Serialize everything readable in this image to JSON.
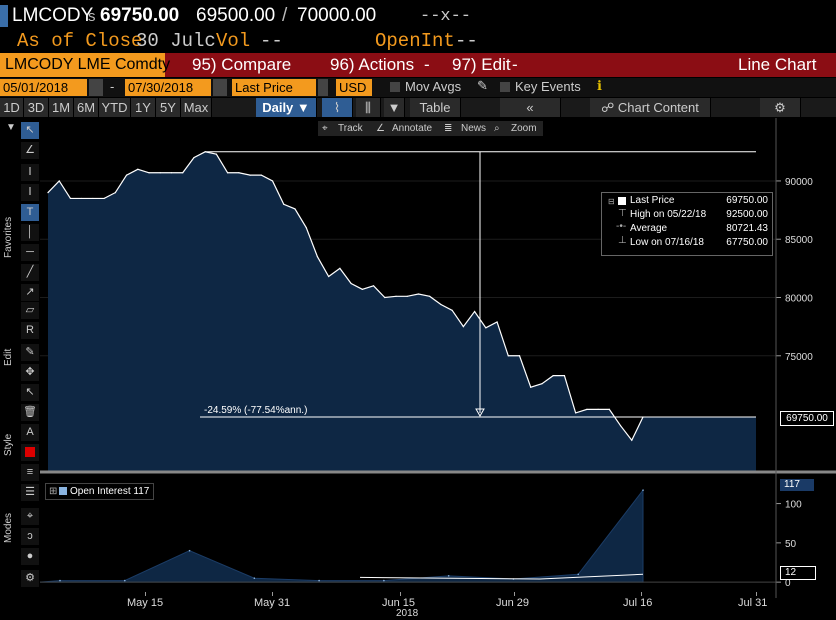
{
  "header": {
    "ticker": "LMCODY",
    "last_prefix": "s",
    "last": "69750.00",
    "bid": "69500.00",
    "separator": "/",
    "ask": "70000.00",
    "change_marker": "--x--",
    "as_of": "As of Close",
    "date_short": "30 Julc",
    "vol_label": "Vol",
    "vol_value": "--",
    "openint_label": "OpenInt",
    "openint_value": "--"
  },
  "menu": {
    "security": "LMCODY LME Comdty",
    "compare": "95) Compare",
    "actions": "96) Actions",
    "edit": "97) Edit",
    "chart_type": "Line Chart",
    "arrow": "-"
  },
  "controls": {
    "start_date": "05/01/2018",
    "dash": "-",
    "end_date": "07/30/2018",
    "field": "Last Price",
    "currency": "USD",
    "mov_avgs": "Mov Avgs",
    "key_events": "Key Events"
  },
  "tabs": {
    "periods": [
      "1D",
      "3D",
      "1M",
      "6M",
      "YTD",
      "1Y",
      "5Y",
      "Max"
    ],
    "frequency": "Daily",
    "table": "Table",
    "collapse": "«",
    "chart_content": "Chart Content"
  },
  "annotate_bar": {
    "track": "Track",
    "annotate": "Annotate",
    "news": "News",
    "zoom": "Zoom"
  },
  "left_labels": {
    "favorites": "Favorites",
    "edit": "Edit",
    "style": "Style",
    "modes": "Modes"
  },
  "legend": {
    "last_price_label": "Last Price",
    "last_price_value": "69750.00",
    "high_label": "High on 05/22/18",
    "high_value": "92500.00",
    "average_label": "Average",
    "average_value": "80721.43",
    "low_label": "Low on 07/16/18",
    "low_value": "67750.00"
  },
  "annotation_text": "-24.59% (-77.54%ann.)",
  "price_tag": "69750.00",
  "oi": {
    "legend": "Open Interest 117",
    "tag_high": "117",
    "tag_low": "12"
  },
  "colors": {
    "accent_orange": "#f39a1e",
    "menu_red": "#8b0d14",
    "chart_fill": "#0e2744",
    "chart_line": "#ffffff"
  },
  "chart_data": [
    {
      "type": "area",
      "y_ticks": [
        90000,
        85000,
        80000,
        75000
      ],
      "ylim": [
        65200,
        95400
      ],
      "x": [
        "05/01",
        "05/02",
        "05/03",
        "05/04",
        "05/08",
        "05/09",
        "05/10",
        "05/11",
        "05/14",
        "05/15",
        "05/16",
        "05/17",
        "05/18",
        "05/21",
        "05/22",
        "05/23",
        "05/24",
        "05/25",
        "05/29",
        "05/30",
        "05/31",
        "06/01",
        "06/04",
        "06/05",
        "06/06",
        "06/07",
        "06/08",
        "06/11",
        "06/12",
        "06/13",
        "06/14",
        "06/15",
        "06/18",
        "06/19",
        "06/20",
        "06/21",
        "06/22",
        "06/25",
        "06/26",
        "06/27",
        "06/28",
        "06/29",
        "07/02",
        "07/03",
        "07/04",
        "07/05",
        "07/06",
        "07/09",
        "07/10",
        "07/11",
        "07/12",
        "07/13",
        "07/16",
        "07/17"
      ],
      "values": [
        89000,
        90000,
        88500,
        88500,
        88500,
        88500,
        89000,
        90500,
        91000,
        90700,
        90700,
        90700,
        90700,
        92000,
        92500,
        92300,
        90700,
        90700,
        90500,
        90500,
        90000,
        88000,
        87600,
        86000,
        83500,
        81800,
        82500,
        81200,
        80700,
        81000,
        80000,
        80100,
        80100,
        80300,
        80100,
        79400,
        78900,
        77500,
        78800,
        77400,
        77900,
        75000,
        75000,
        72300,
        72600,
        73300,
        73300,
        70100,
        70400,
        70400,
        70400,
        69000,
        67750,
        69750
      ],
      "series": [
        {
          "name": "Last Price"
        }
      ],
      "x_ticks": [
        "May 15",
        "May 31",
        "Jun 15",
        "Jun 29",
        "Jul 16",
        "Jul 31"
      ],
      "x_year": "2018"
    },
    {
      "type": "area",
      "y_ticks": [
        100,
        50,
        0
      ],
      "ylim": [
        -10,
        130
      ],
      "series": [
        {
          "name": "Open Interest",
          "values": [
            2,
            2,
            40,
            5,
            2,
            2,
            8,
            4,
            10,
            117
          ]
        }
      ]
    }
  ]
}
